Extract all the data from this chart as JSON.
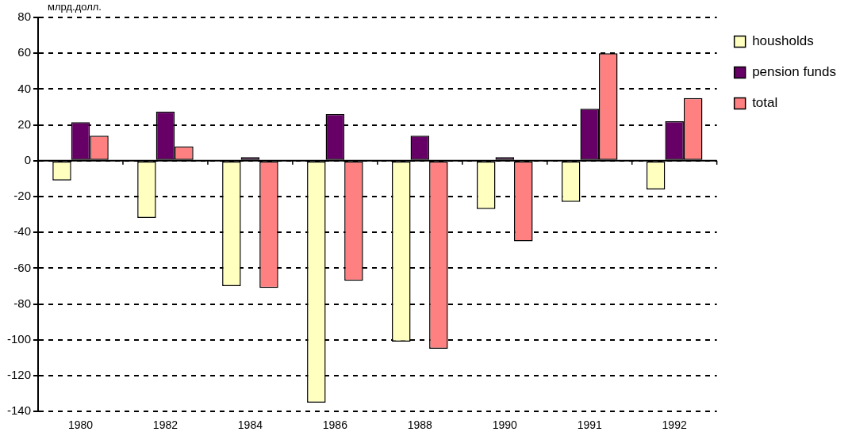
{
  "chart_data": {
    "type": "bar",
    "ylabel": "млрд.долл.",
    "categories": [
      "1980",
      "1982",
      "1984",
      "1986",
      "1988",
      "1990",
      "1991",
      "1992"
    ],
    "series": [
      {
        "name": "housholds",
        "color": "#ffffc0",
        "values": [
          -11,
          -32,
          -70,
          -135,
          -101,
          -27,
          -23,
          -16
        ]
      },
      {
        "name": "pension funds",
        "color": "#660066",
        "values": [
          21.5,
          27.5,
          2,
          26,
          14,
          2,
          29,
          22
        ]
      },
      {
        "name": "total",
        "color": "#ff8080",
        "values": [
          14,
          8,
          -71,
          -67,
          -105,
          -45,
          60,
          35
        ]
      }
    ],
    "ylim": [
      -140,
      80
    ],
    "yticks": [
      -140,
      -120,
      -100,
      -80,
      -60,
      -40,
      -20,
      0,
      20,
      40,
      60,
      80
    ],
    "grid": "y",
    "legend": "top right"
  }
}
